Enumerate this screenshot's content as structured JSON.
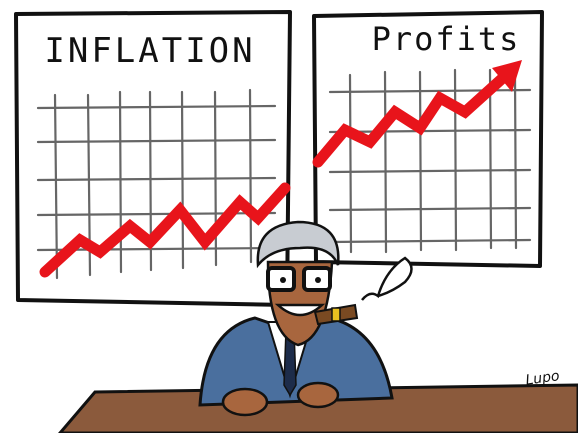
{
  "panels": [
    {
      "title": "INFLATION"
    },
    {
      "title": "Profits"
    }
  ],
  "signature": "Lupo"
}
